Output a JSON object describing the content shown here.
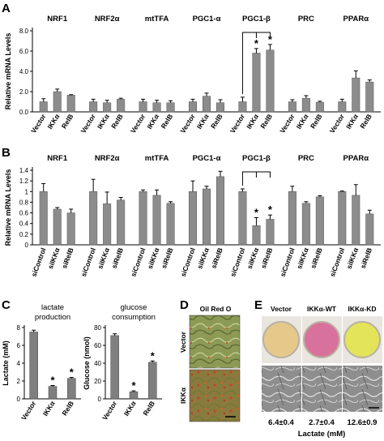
{
  "panels": {
    "a": "A",
    "b": "B",
    "c": "C",
    "d": "D",
    "e": "E"
  },
  "chart_data": [
    {
      "id": "A",
      "type": "bar",
      "ylabel": "Relative mRNA Levels",
      "ylim": [
        0,
        8
      ],
      "yticks": [
        "0.0",
        "2.0",
        "4.0",
        "6.0",
        "8.0"
      ],
      "groups": [
        {
          "name": "NRF1",
          "categories": [
            "Vector",
            "IKKα",
            "RelB"
          ],
          "values": [
            1.0,
            2.0,
            1.65
          ],
          "errors": [
            0.3,
            0.25,
            0.05
          ]
        },
        {
          "name": "NRF2α",
          "categories": [
            "Vector",
            "IKKα",
            "RelB"
          ],
          "values": [
            1.0,
            0.9,
            1.25
          ],
          "errors": [
            0.25,
            0.25,
            0.1
          ]
        },
        {
          "name": "mtTFA",
          "categories": [
            "Vector",
            "IKKα",
            "RelB"
          ],
          "values": [
            1.0,
            0.9,
            0.9
          ],
          "errors": [
            0.25,
            0.25,
            0.2
          ]
        },
        {
          "name": "PGC1-α",
          "categories": [
            "Vector",
            "IKKα",
            "RelB"
          ],
          "values": [
            1.0,
            1.55,
            0.9
          ],
          "errors": [
            0.25,
            0.3,
            0.3
          ]
        },
        {
          "name": "PGC1-β",
          "categories": [
            "Vector",
            "IKKα",
            "RelB"
          ],
          "values": [
            1.0,
            5.8,
            6.1
          ],
          "errors": [
            0.45,
            0.45,
            0.55
          ],
          "stars": [
            false,
            true,
            true
          ]
        },
        {
          "name": "PRC",
          "categories": [
            "Vector",
            "IKKα",
            "RelB"
          ],
          "values": [
            1.0,
            1.35,
            0.95
          ],
          "errors": [
            0.2,
            0.25,
            0.1
          ]
        },
        {
          "name": "PPARα",
          "categories": [
            "Vector",
            "IKKα",
            "RelB"
          ],
          "values": [
            1.0,
            3.35,
            2.95
          ],
          "errors": [
            0.25,
            0.7,
            0.2
          ]
        }
      ]
    },
    {
      "id": "B",
      "type": "bar",
      "ylabel": "Relative mRNA Levels",
      "ylim": [
        0,
        1.4
      ],
      "yticks": [
        "0",
        "0.2",
        "0.4",
        "0.6",
        "0.8",
        "1",
        "1.2",
        "1.4"
      ],
      "groups": [
        {
          "name": "NRF1",
          "categories": [
            "siControl",
            "siIKKα",
            "siRelB"
          ],
          "values": [
            1.0,
            0.67,
            0.6
          ],
          "errors": [
            0.15,
            0.03,
            0.07
          ]
        },
        {
          "name": "NRF2α",
          "categories": [
            "siControl",
            "siIKKα",
            "siRelB"
          ],
          "values": [
            1.0,
            0.77,
            0.84
          ],
          "errors": [
            0.23,
            0.22,
            0.05
          ]
        },
        {
          "name": "mtTFA",
          "categories": [
            "siControl",
            "siIKKα",
            "siRelB"
          ],
          "values": [
            1.0,
            0.93,
            0.78
          ],
          "errors": [
            0.03,
            0.1,
            0.03
          ]
        },
        {
          "name": "PGC1-α",
          "categories": [
            "siControl",
            "siIKKα",
            "siRelB"
          ],
          "values": [
            1.0,
            1.05,
            1.28
          ],
          "errors": [
            0.2,
            0.05,
            0.1
          ]
        },
        {
          "name": "PGC1-β",
          "categories": [
            "siControl",
            "siIKKα",
            "siRelB"
          ],
          "values": [
            1.0,
            0.36,
            0.48
          ],
          "errors": [
            0.05,
            0.15,
            0.08
          ],
          "stars": [
            false,
            true,
            true
          ]
        },
        {
          "name": "PRC",
          "categories": [
            "siControl",
            "siIKKα",
            "siRelB"
          ],
          "values": [
            1.0,
            0.78,
            0.9
          ],
          "errors": [
            0.1,
            0.03,
            0.02
          ]
        },
        {
          "name": "PPARα",
          "categories": [
            "siControl",
            "siIKKα",
            "siRelB"
          ],
          "values": [
            1.0,
            0.93,
            0.58
          ],
          "errors": [
            0.01,
            0.2,
            0.07
          ]
        }
      ]
    },
    {
      "id": "C1",
      "type": "bar",
      "title": "lactate production",
      "ylabel": "Lactate (mM)",
      "ylim": [
        0,
        8
      ],
      "yticks": [
        "0",
        "2",
        "4",
        "6",
        "8"
      ],
      "categories": [
        "Vector",
        "IKKα",
        "RelB"
      ],
      "values": [
        7.5,
        1.4,
        2.3
      ],
      "errors": [
        0.2,
        0.1,
        0.1
      ],
      "stars": [
        false,
        true,
        true
      ]
    },
    {
      "id": "C2",
      "type": "bar",
      "title": "glucose consumption",
      "ylabel": "Glucose (nmol)",
      "ylim": [
        0,
        80
      ],
      "yticks": [
        "0",
        "20",
        "40",
        "60",
        "80"
      ],
      "categories": [
        "Vector",
        "IKKα",
        "RelB"
      ],
      "values": [
        71,
        8,
        41
      ],
      "errors": [
        2,
        1,
        1.5
      ],
      "stars": [
        false,
        true,
        true
      ]
    }
  ],
  "panel_d": {
    "title": "Oil Red O",
    "rows": [
      "Vector",
      "IKKα"
    ]
  },
  "panel_e": {
    "columns": [
      "Vector",
      "IKKα-WT",
      "IKKα-KD"
    ],
    "dish_colors": [
      "#e6c98a",
      "#d8729c",
      "#e3e45a"
    ],
    "lactate_values": [
      "6.4±0.4",
      "2.7±0.4",
      "12.6±0.9"
    ],
    "lactate_label": "Lactate (mM)"
  }
}
